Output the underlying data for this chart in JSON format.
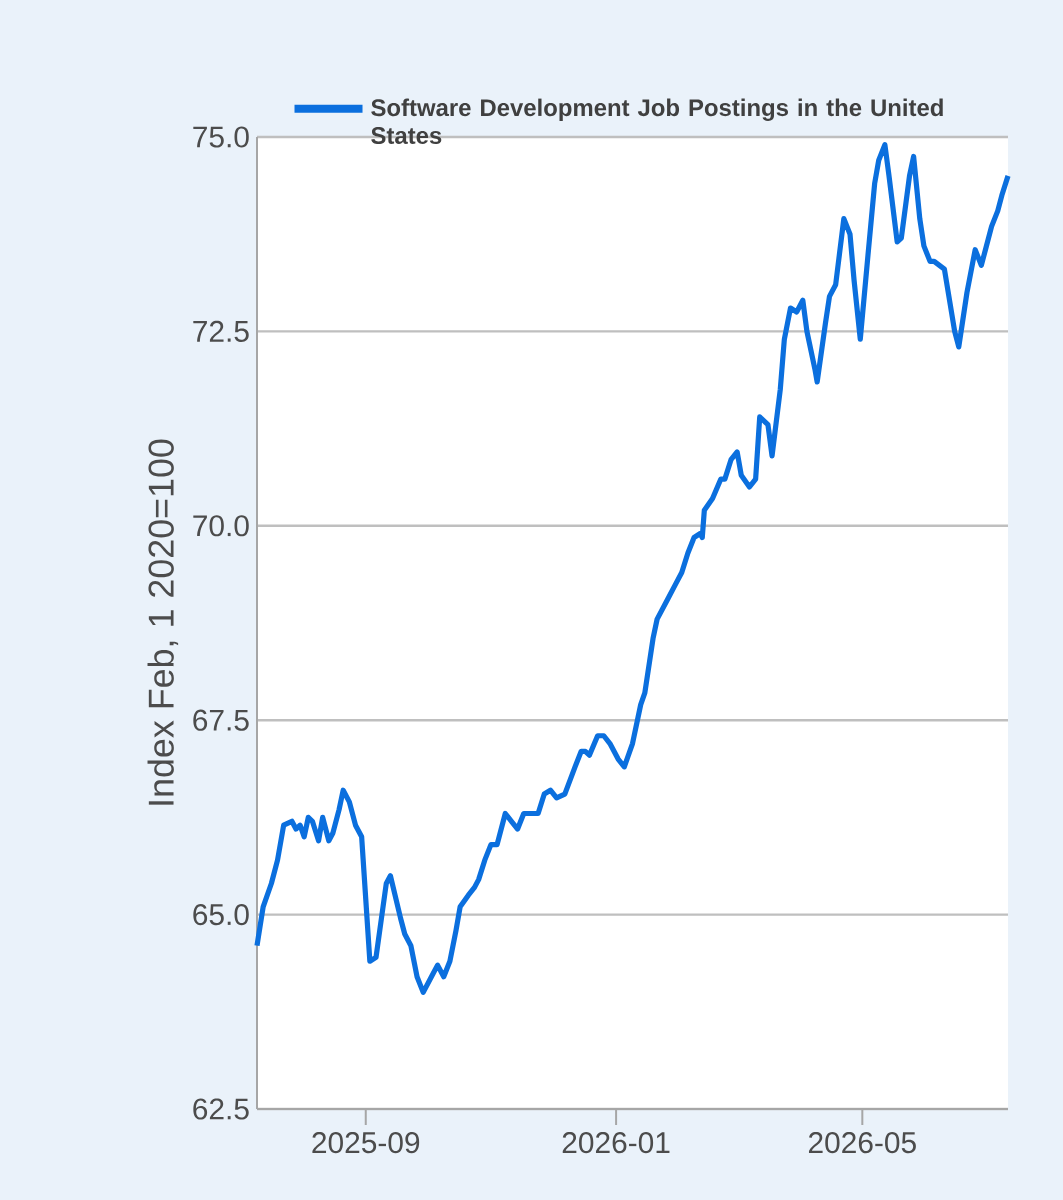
{
  "chart_data": {
    "type": "line",
    "ylabel": "Index Feb, 1 2020=100",
    "xlim": [
      "2025-07-10",
      "2026-07-11"
    ],
    "ylim": [
      62.5,
      75.0
    ],
    "xticks": [
      {
        "value": "2025-09-01",
        "label": "2025-09"
      },
      {
        "value": "2026-01-01",
        "label": "2026-01"
      },
      {
        "value": "2026-05-01",
        "label": "2026-05"
      }
    ],
    "yticks": [
      {
        "value": 62.5,
        "label": "62.5"
      },
      {
        "value": 65.0,
        "label": "65.0"
      },
      {
        "value": 67.5,
        "label": "67.5"
      },
      {
        "value": 70.0,
        "label": "70.0"
      },
      {
        "value": 72.5,
        "label": "72.5"
      },
      {
        "value": 75.0,
        "label": "75.0"
      }
    ],
    "grid": "y",
    "legend": "top",
    "x": [
      "2025-07-10",
      "2025-07-13",
      "2025-07-17",
      "2025-07-20",
      "2025-07-23",
      "2025-07-27",
      "2025-07-29",
      "2025-07-31",
      "2025-08-02",
      "2025-08-04",
      "2025-08-06",
      "2025-08-09",
      "2025-08-11",
      "2025-08-14",
      "2025-08-16",
      "2025-08-19",
      "2025-08-21",
      "2025-08-24",
      "2025-08-27",
      "2025-08-30",
      "2025-09-03",
      "2025-09-06",
      "2025-09-11",
      "2025-09-13",
      "2025-09-18",
      "2025-09-20",
      "2025-09-23",
      "2025-09-26",
      "2025-09-29",
      "2025-10-03",
      "2025-10-06",
      "2025-10-09",
      "2025-10-12",
      "2025-10-15",
      "2025-10-17",
      "2025-10-21",
      "2025-10-24",
      "2025-10-26",
      "2025-10-29",
      "2025-11-01",
      "2025-11-04",
      "2025-11-08",
      "2025-11-11",
      "2025-11-14",
      "2025-11-17",
      "2025-11-21",
      "2025-11-24",
      "2025-11-27",
      "2025-11-30",
      "2025-12-03",
      "2025-12-07",
      "2025-12-12",
      "2025-12-15",
      "2025-12-17",
      "2025-12-19",
      "2025-12-23",
      "2025-12-26",
      "2025-12-29",
      "2026-01-02",
      "2026-01-05",
      "2026-01-09",
      "2026-01-13",
      "2026-01-15",
      "2026-01-19",
      "2026-01-21",
      "2026-01-26",
      "2026-01-30",
      "2026-02-02",
      "2026-02-05",
      "2026-02-08",
      "2026-02-11",
      "2026-02-12",
      "2026-02-13",
      "2026-02-17",
      "2026-02-21",
      "2026-02-23",
      "2026-02-26",
      "2026-03-01",
      "2026-03-03",
      "2026-03-07",
      "2026-03-10",
      "2026-03-12",
      "2026-03-16",
      "2026-03-18",
      "2026-03-22",
      "2026-03-24",
      "2026-03-27",
      "2026-03-30",
      "2026-04-02",
      "2026-04-04",
      "2026-04-08",
      "2026-04-09",
      "2026-04-13",
      "2026-04-15",
      "2026-04-18",
      "2026-04-22",
      "2026-04-25",
      "2026-04-27",
      "2026-04-30",
      "2026-05-04",
      "2026-05-07",
      "2026-05-09",
      "2026-05-12",
      "2026-05-14",
      "2026-05-18",
      "2026-05-20",
      "2026-05-24",
      "2026-05-26",
      "2026-05-29",
      "2026-05-31",
      "2026-06-03",
      "2026-06-05",
      "2026-06-10",
      "2026-06-15",
      "2026-06-17",
      "2026-06-21",
      "2026-06-25",
      "2026-06-28",
      "2026-06-30",
      "2026-07-03",
      "2026-07-06",
      "2026-07-08",
      "2026-07-11"
    ],
    "series": [
      {
        "name": "Software Development Job Postings in the United States",
        "color": "#0b6fde",
        "values": [
          64.6,
          65.1,
          65.4,
          65.7,
          66.15,
          66.2,
          66.1,
          66.15,
          66.0,
          66.25,
          66.2,
          65.95,
          66.25,
          65.95,
          66.05,
          66.35,
          66.6,
          66.45,
          66.15,
          66.0,
          64.4,
          64.45,
          65.4,
          65.5,
          64.95,
          64.75,
          64.6,
          64.2,
          64.0,
          64.2,
          64.35,
          64.2,
          64.4,
          64.8,
          65.1,
          65.25,
          65.35,
          65.45,
          65.7,
          65.9,
          65.9,
          66.3,
          66.2,
          66.1,
          66.3,
          66.3,
          66.3,
          66.55,
          66.6,
          66.5,
          66.55,
          66.9,
          67.1,
          67.1,
          67.05,
          67.3,
          67.3,
          67.2,
          67.0,
          66.9,
          67.2,
          67.7,
          67.85,
          68.55,
          68.8,
          69.05,
          69.25,
          69.4,
          69.65,
          69.85,
          69.9,
          69.85,
          70.2,
          70.35,
          70.6,
          70.6,
          70.85,
          70.95,
          70.65,
          70.5,
          70.6,
          71.4,
          71.3,
          70.9,
          71.75,
          72.4,
          72.8,
          72.75,
          72.9,
          72.5,
          72.0,
          71.85,
          72.6,
          72.95,
          73.1,
          73.95,
          73.75,
          73.15,
          72.4,
          73.55,
          74.4,
          74.7,
          74.9,
          74.5,
          73.65,
          73.7,
          74.5,
          74.75,
          73.95,
          73.6,
          73.4,
          73.4,
          73.3,
          72.5,
          72.3,
          73.0,
          73.55,
          73.35,
          73.55,
          73.85,
          74.05,
          74.25,
          74.5
        ]
      }
    ]
  }
}
